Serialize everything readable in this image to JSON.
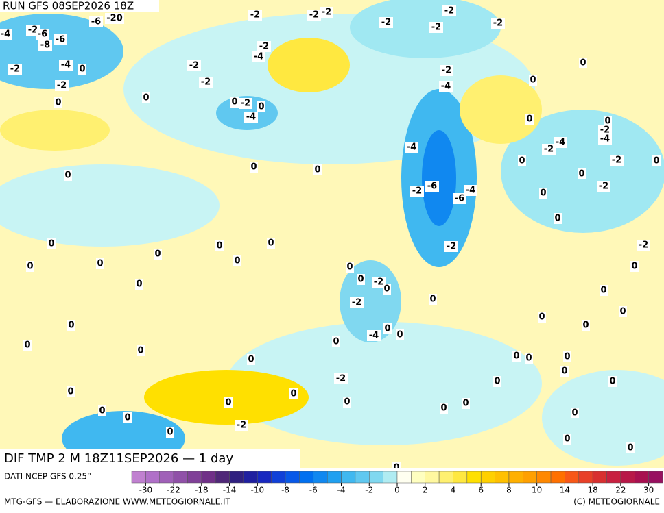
{
  "header": {
    "run": "RUN GFS 08SEP2026 18Z"
  },
  "map": {
    "title": "DIF TMP 2 M 18Z11SEP2026 — 1 day",
    "contour_labels": [
      -4,
      -2,
      -6,
      -8,
      -6,
      -6,
      -20,
      -2,
      -4,
      0,
      -2,
      0,
      0,
      -2,
      -2,
      -2,
      -2,
      -2,
      -2,
      -2,
      -2,
      -4,
      -2,
      -2,
      0,
      -2,
      0,
      -4,
      -2,
      -4,
      0,
      0,
      0,
      0,
      -2,
      -4,
      -4,
      -2,
      0,
      -2,
      0,
      0,
      -2,
      0,
      0,
      -4,
      0,
      0,
      0,
      -2,
      -6,
      -4,
      -6,
      0,
      0,
      0,
      0,
      0,
      0,
      0,
      -2,
      -2,
      0,
      0,
      0,
      0,
      -2,
      0,
      0,
      -2,
      0,
      0,
      0,
      0,
      0,
      0,
      -4,
      0,
      0,
      0,
      0,
      0,
      0,
      0,
      0,
      0,
      -2,
      0,
      0,
      0,
      0,
      0,
      0,
      0,
      0,
      0,
      0,
      0,
      -2,
      0,
      0,
      0,
      0,
      0
    ]
  },
  "legend": {
    "source": "DATI NCEP GFS 0.25°",
    "ticks": [
      -30,
      -22,
      -18,
      -14,
      -10,
      -8,
      -6,
      -4,
      -2,
      0,
      2,
      4,
      6,
      8,
      10,
      14,
      18,
      22,
      30
    ],
    "colors": [
      "#c080d0",
      "#b070c8",
      "#a060b8",
      "#9050a8",
      "#804098",
      "#703088",
      "#502878",
      "#302080",
      "#2020a0",
      "#1828c0",
      "#1040d8",
      "#0858e8",
      "#0070f0",
      "#1088f0",
      "#20a0f0",
      "#40b8f0",
      "#60c8f0",
      "#80d8f0",
      "#b0ecf2",
      "#fffff0",
      "#ffffc0",
      "#fff8a0",
      "#fff070",
      "#ffe840",
      "#ffe000",
      "#ffd000",
      "#ffc000",
      "#ffb000",
      "#ffa000",
      "#ff8800",
      "#ff7000",
      "#f85818",
      "#e84028",
      "#d83030",
      "#c82040",
      "#b81848",
      "#a81050",
      "#981060"
    ]
  },
  "footer": {
    "credit": "MTG-GFS — ELABORAZIONE WWW.METEOGIORNALE.IT",
    "copyright": "(C) METEOGIORNALE"
  }
}
